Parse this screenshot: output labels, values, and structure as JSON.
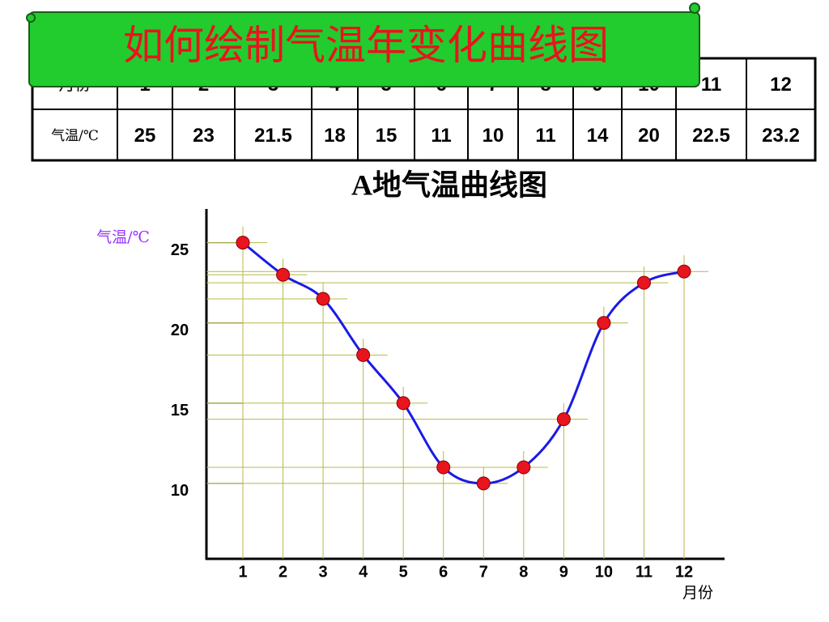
{
  "banner": {
    "title": "如何绘制气温年变化曲线图"
  },
  "chart_data": {
    "type": "line",
    "title": "A地气温曲线图",
    "x_label": "月份",
    "y_label": "气温/℃",
    "categories": [
      "1",
      "2",
      "3",
      "4",
      "5",
      "6",
      "7",
      "8",
      "9",
      "10",
      "11",
      "12"
    ],
    "values": [
      25,
      23,
      21.5,
      18,
      15,
      11,
      10,
      11,
      14,
      20,
      22.5,
      23.2
    ],
    "value_labels": [
      "25",
      "23",
      "21.5",
      "18",
      "15",
      "11",
      "10",
      "11",
      "14",
      "20",
      "22.5",
      "23.2"
    ],
    "ylim": [
      5.3,
      27.1
    ],
    "yticks": [
      10,
      15,
      20,
      25
    ],
    "color": "#1a1ae6",
    "marker_color": "#e8141e",
    "guide_color": "#b8b84a"
  }
}
